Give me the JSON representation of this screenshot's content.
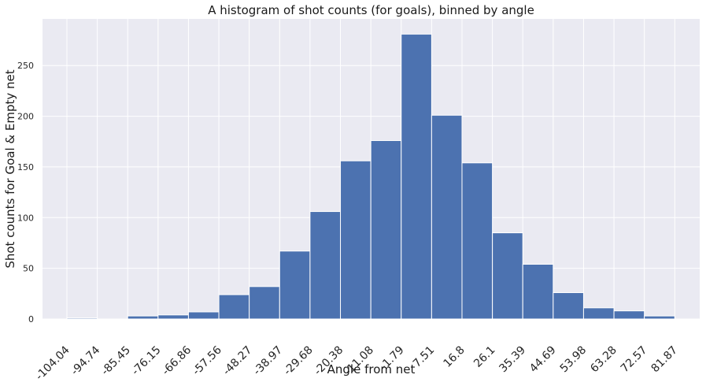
{
  "chart_data": {
    "type": "bar",
    "title": "A histogram of shot counts (for goals), binned by angle",
    "xlabel": "Angle from net",
    "ylabel": "Shot counts for Goal & Empty net",
    "x_tick_labels": [
      "-104.04",
      "-94.74",
      "-85.45",
      "-76.15",
      "-66.86",
      "-57.56",
      "-48.27",
      "-38.97",
      "-29.68",
      "-20.38",
      "-11.08",
      "-1.79",
      "7.51",
      "16.8",
      "26.1",
      "35.39",
      "44.69",
      "53.98",
      "63.28",
      "72.57",
      "81.87"
    ],
    "bin_edges": [
      -104.04,
      -94.74,
      -85.45,
      -76.15,
      -66.86,
      -57.56,
      -48.27,
      -38.97,
      -29.68,
      -20.38,
      -11.08,
      -1.79,
      7.51,
      16.8,
      26.1,
      35.39,
      44.69,
      53.98,
      63.28,
      72.57,
      81.87
    ],
    "values": [
      1,
      0,
      3,
      4,
      7,
      24,
      32,
      67,
      106,
      156,
      176,
      281,
      201,
      154,
      85,
      54,
      26,
      11,
      8,
      3
    ],
    "xlim": [
      -111.5,
      89.5
    ],
    "ylim": [
      0,
      296
    ],
    "y_ticks": [
      0,
      50,
      100,
      150,
      200,
      250
    ],
    "grid": true,
    "colors": {
      "bar": "#4c72b0",
      "background": "#eaeaf2",
      "grid": "#ffffff"
    }
  }
}
